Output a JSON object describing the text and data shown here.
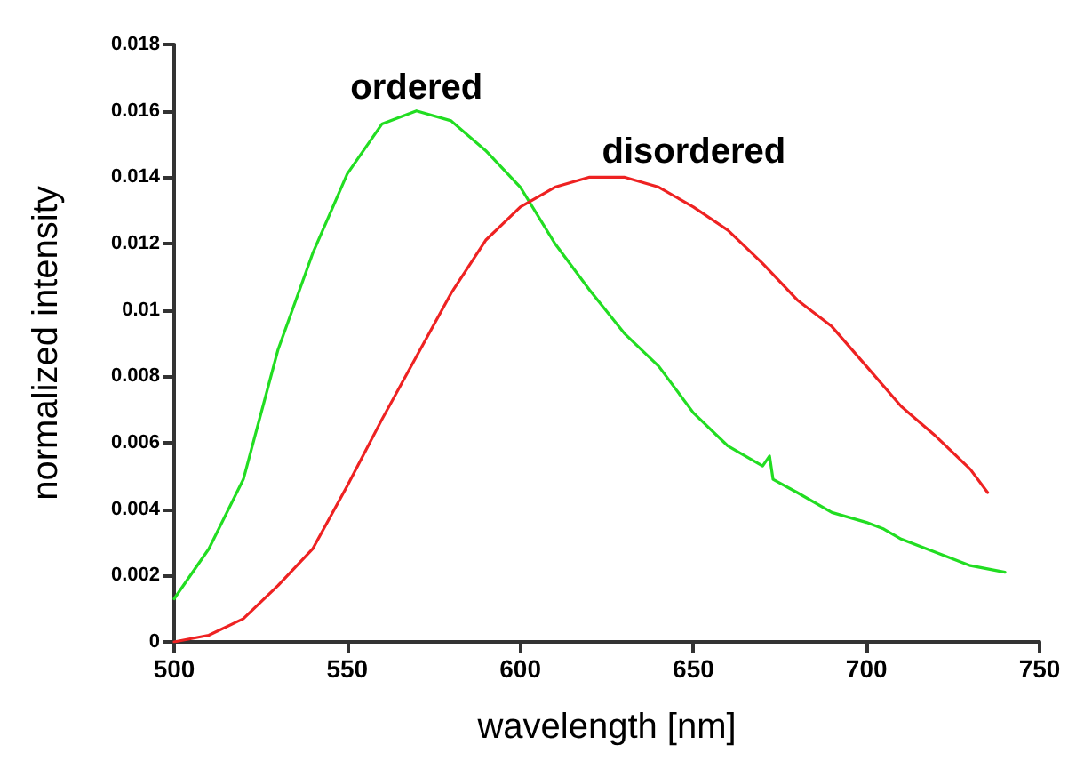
{
  "chart_data": {
    "type": "line",
    "xlabel": "wavelength [nm]",
    "ylabel": "normalized intensity",
    "xlim": [
      500,
      750
    ],
    "xticks": [
      500,
      550,
      600,
      650,
      700,
      750
    ],
    "ylim": [
      0,
      0.018
    ],
    "yticks": [
      0,
      0.002,
      0.004,
      0.006,
      0.008,
      0.01,
      0.012,
      0.014,
      0.016,
      0.018
    ],
    "grid": false,
    "legend": false,
    "marker": "none",
    "line_style": "solid",
    "series": [
      {
        "name": "ordered",
        "color": "#22dd22",
        "x": [
          500,
          510,
          520,
          530,
          540,
          550,
          560,
          570,
          580,
          590,
          600,
          610,
          620,
          630,
          640,
          650,
          660,
          670,
          672,
          673,
          680,
          690,
          700,
          705,
          710,
          720,
          730,
          740
        ],
        "values": [
          0.0013,
          0.0028,
          0.0049,
          0.0088,
          0.0117,
          0.0141,
          0.0156,
          0.016,
          0.0157,
          0.0148,
          0.0137,
          0.012,
          0.0106,
          0.0093,
          0.0083,
          0.0069,
          0.0059,
          0.0053,
          0.0056,
          0.0049,
          0.0045,
          0.0039,
          0.0036,
          0.0034,
          0.0031,
          0.0027,
          0.0023,
          0.0021
        ]
      },
      {
        "name": "disordered",
        "color": "#ee2222",
        "x": [
          500,
          510,
          520,
          530,
          540,
          550,
          560,
          570,
          580,
          590,
          600,
          610,
          620,
          630,
          640,
          650,
          660,
          670,
          680,
          690,
          700,
          710,
          720,
          730,
          735
        ],
        "values": [
          0,
          0.0002,
          0.0007,
          0.0017,
          0.0028,
          0.0047,
          0.0067,
          0.0086,
          0.0105,
          0.0121,
          0.0131,
          0.0137,
          0.014,
          0.014,
          0.0137,
          0.0131,
          0.0124,
          0.0114,
          0.0103,
          0.0095,
          0.0083,
          0.0071,
          0.0062,
          0.0052,
          0.0045
        ]
      }
    ]
  }
}
